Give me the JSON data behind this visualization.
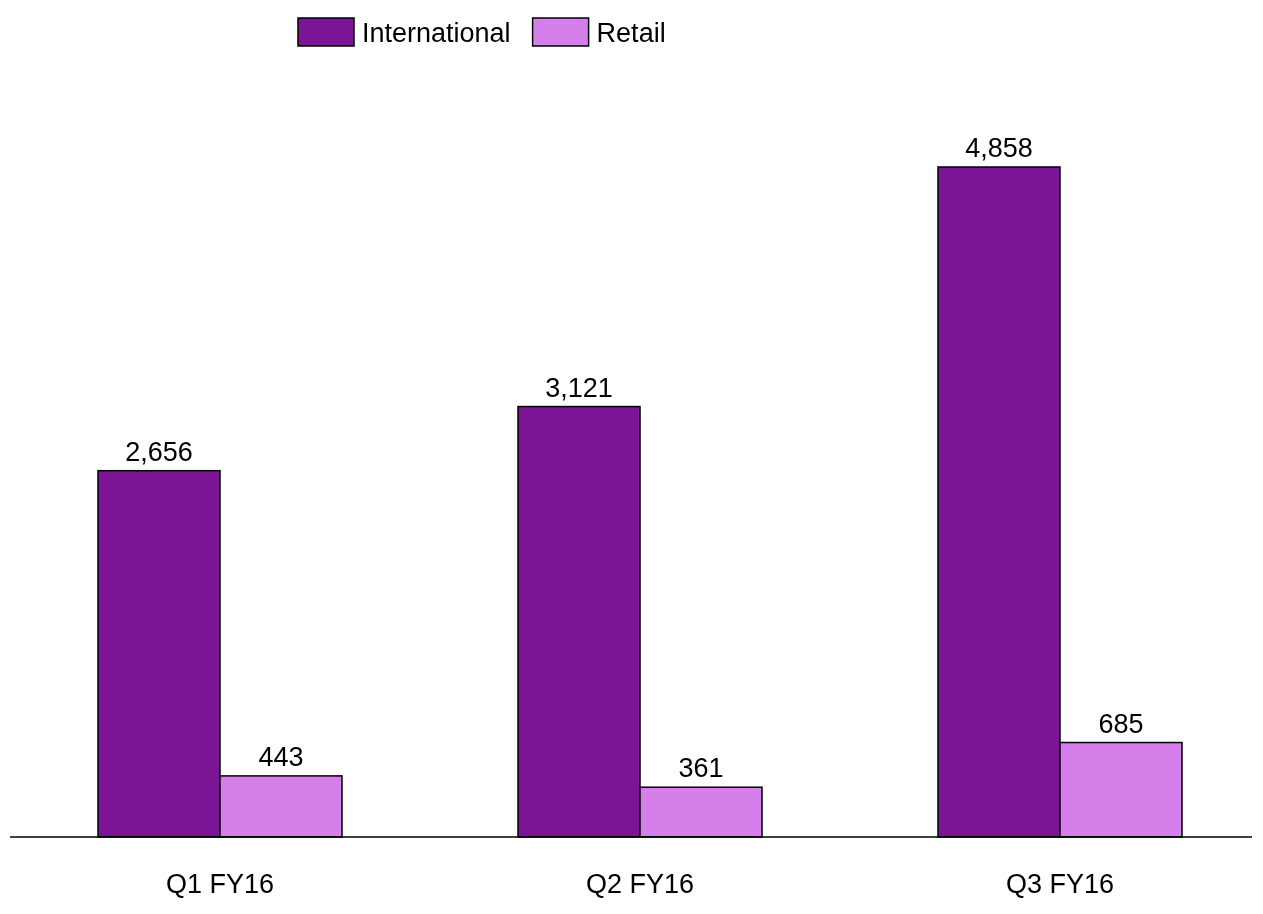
{
  "chart_data": {
    "type": "bar",
    "categories": [
      "Q1 FY16",
      "Q2 FY16",
      "Q3 FY16"
    ],
    "series": [
      {
        "name": "International",
        "color": "#7b1595",
        "values": [
          2656,
          3121,
          4858
        ],
        "value_labels": [
          "2,656",
          "3,121",
          "4,858"
        ]
      },
      {
        "name": "Retail",
        "color": "#d580ea",
        "values": [
          443,
          361,
          685
        ],
        "value_labels": [
          "443",
          "361",
          "685"
        ]
      }
    ],
    "legend": "top",
    "grid": false
  }
}
